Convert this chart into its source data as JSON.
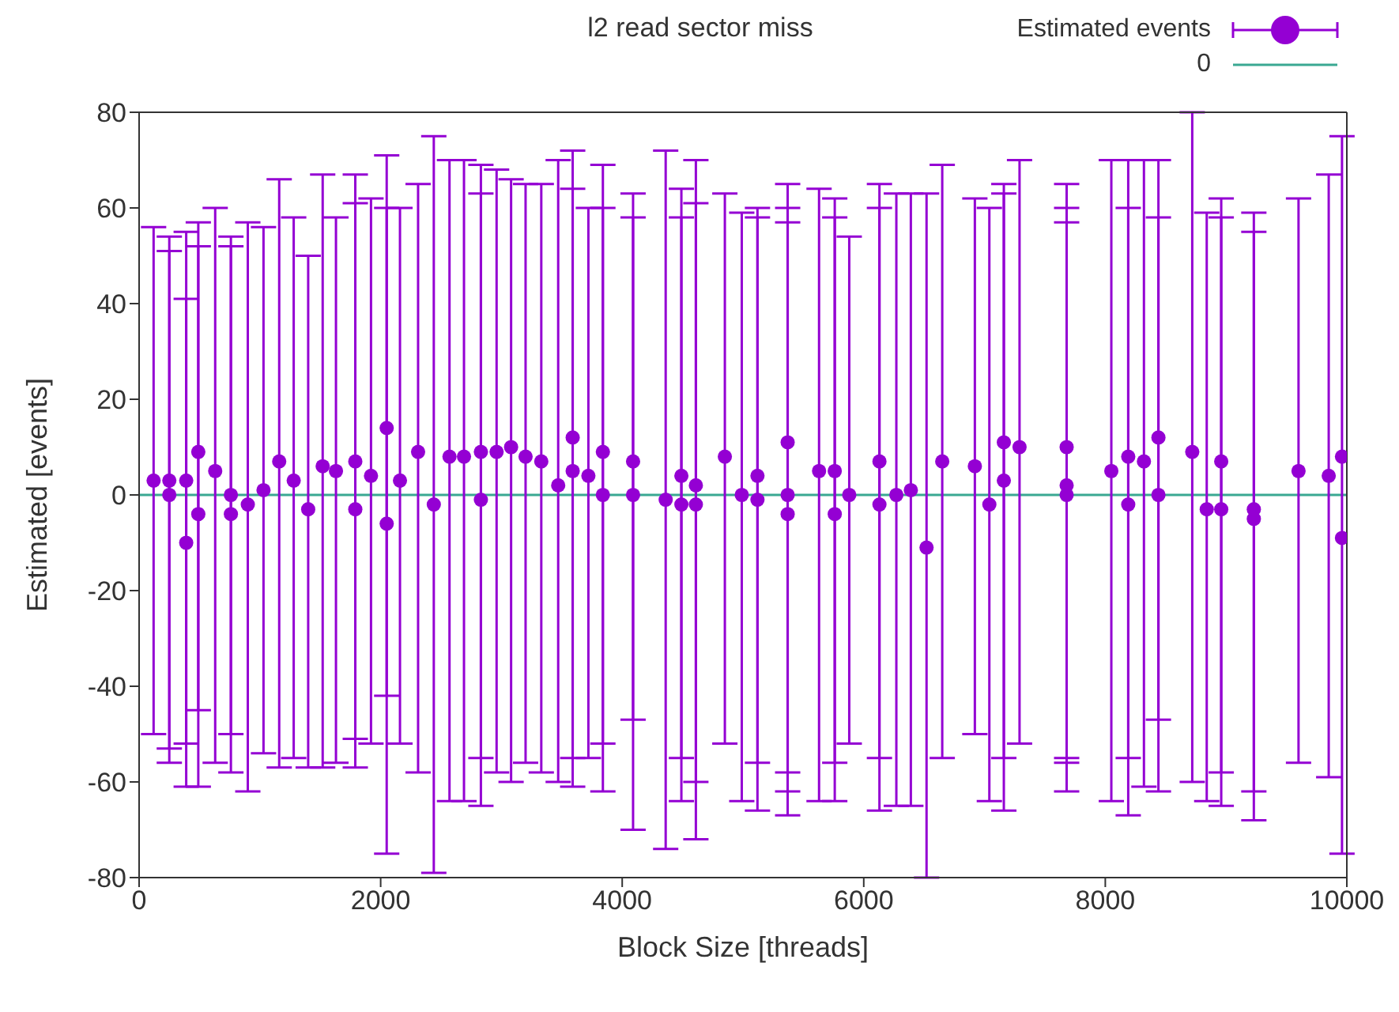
{
  "chart_data": {
    "type": "scatter",
    "title": "l2 read sector miss",
    "xlabel": "Block Size [threads]",
    "ylabel": "Estimated [events]",
    "xlim": [
      0,
      10000
    ],
    "xticks": [
      0,
      2000,
      4000,
      6000,
      8000,
      10000
    ],
    "ylim": [
      -80,
      80
    ],
    "yticks": [
      -80,
      -60,
      -40,
      -20,
      0,
      20,
      40,
      60,
      80
    ],
    "grid": false,
    "legend": "top right",
    "marker": "circle",
    "ref_lines": [
      {
        "axis": "y",
        "value": 0,
        "label": "0",
        "color": "#3aa892"
      }
    ],
    "series": [
      {
        "name": "Estimated events",
        "color": "#9400d3",
        "x": [
          120,
          250,
          250,
          390,
          390,
          490,
          490,
          630,
          760,
          760,
          900,
          1030,
          1160,
          1280,
          1400,
          1520,
          1630,
          1790,
          1790,
          1920,
          2050,
          2050,
          2160,
          2310,
          2440,
          2570,
          2690,
          2830,
          2830,
          2960,
          3080,
          3200,
          3330,
          3470,
          3590,
          3590,
          3720,
          3840,
          3840,
          4090,
          4090,
          4360,
          4490,
          4490,
          4610,
          4610,
          4850,
          4990,
          5120,
          5120,
          5370,
          5370,
          5370,
          5630,
          5760,
          5760,
          5880,
          6130,
          6130,
          6270,
          6390,
          6520,
          6650,
          6920,
          7040,
          7160,
          7160,
          7290,
          7680,
          7680,
          7680,
          8050,
          8190,
          8190,
          8320,
          8440,
          8440,
          8720,
          8840,
          8960,
          8960,
          9230,
          9230,
          9600,
          9850,
          9960,
          9960
        ],
        "values": [
          3,
          3,
          0,
          -10,
          3,
          9,
          -4,
          5,
          0,
          -4,
          -2,
          1,
          7,
          3,
          -3,
          6,
          5,
          7,
          -3,
          4,
          14,
          -6,
          3,
          9,
          -2,
          8,
          8,
          9,
          -1,
          9,
          10,
          8,
          7,
          2,
          12,
          5,
          4,
          9,
          0,
          7,
          0,
          -1,
          4,
          -2,
          2,
          -2,
          8,
          0,
          4,
          -1,
          11,
          0,
          -4,
          5,
          5,
          -4,
          0,
          7,
          -2,
          0,
          1,
          -11,
          7,
          6,
          -2,
          11,
          3,
          10,
          10,
          2,
          0,
          5,
          8,
          -2,
          7,
          12,
          0,
          9,
          -3,
          7,
          -3,
          -3,
          -5,
          5,
          4,
          8,
          -9
        ],
        "errors": [
          [
            -50,
            56
          ],
          [
            -53,
            54
          ],
          [
            -56,
            51
          ],
          [
            -61,
            55
          ],
          [
            -52,
            41
          ],
          [
            -61,
            57
          ],
          [
            -45,
            52
          ],
          [
            -56,
            60
          ],
          [
            -58,
            54
          ],
          [
            -50,
            52
          ],
          [
            -62,
            57
          ],
          [
            -54,
            56
          ],
          [
            -57,
            66
          ],
          [
            -55,
            58
          ],
          [
            -57,
            50
          ],
          [
            -57,
            67
          ],
          [
            -56,
            58
          ],
          [
            -57,
            67
          ],
          [
            -51,
            61
          ],
          [
            -52,
            62
          ],
          [
            -75,
            71
          ],
          [
            -42,
            60
          ],
          [
            -52,
            60
          ],
          [
            -58,
            65
          ],
          [
            -79,
            75
          ],
          [
            -64,
            70
          ],
          [
            -64,
            70
          ],
          [
            -65,
            69
          ],
          [
            -55,
            63
          ],
          [
            -58,
            68
          ],
          [
            -60,
            66
          ],
          [
            -56,
            65
          ],
          [
            -58,
            65
          ],
          [
            -60,
            70
          ],
          [
            -61,
            72
          ],
          [
            -55,
            64
          ],
          [
            -55,
            60
          ],
          [
            -62,
            69
          ],
          [
            -52,
            60
          ],
          [
            -70,
            63
          ],
          [
            -47,
            58
          ],
          [
            -74,
            72
          ],
          [
            -64,
            64
          ],
          [
            -55,
            58
          ],
          [
            -72,
            70
          ],
          [
            -60,
            61
          ],
          [
            -52,
            63
          ],
          [
            -64,
            59
          ],
          [
            -66,
            60
          ],
          [
            -56,
            58
          ],
          [
            -67,
            65
          ],
          [
            -58,
            57
          ],
          [
            -62,
            60
          ],
          [
            -64,
            64
          ],
          [
            -64,
            62
          ],
          [
            -56,
            58
          ],
          [
            -52,
            54
          ],
          [
            -66,
            65
          ],
          [
            -55,
            60
          ],
          [
            -65,
            63
          ],
          [
            -65,
            63
          ],
          [
            -80,
            63
          ],
          [
            -55,
            69
          ],
          [
            -50,
            62
          ],
          [
            -64,
            60
          ],
          [
            -66,
            65
          ],
          [
            -55,
            63
          ],
          [
            -52,
            70
          ],
          [
            -62,
            65
          ],
          [
            -56,
            60
          ],
          [
            -55,
            57
          ],
          [
            -64,
            70
          ],
          [
            -67,
            70
          ],
          [
            -55,
            60
          ],
          [
            -61,
            70
          ],
          [
            -62,
            70
          ],
          [
            -47,
            58
          ],
          [
            -60,
            80
          ],
          [
            -64,
            59
          ],
          [
            -65,
            62
          ],
          [
            -58,
            58
          ],
          [
            -68,
            59
          ],
          [
            -62,
            55
          ],
          [
            -56,
            62
          ],
          [
            -59,
            67
          ],
          null,
          [
            -75,
            75
          ]
        ]
      }
    ]
  }
}
